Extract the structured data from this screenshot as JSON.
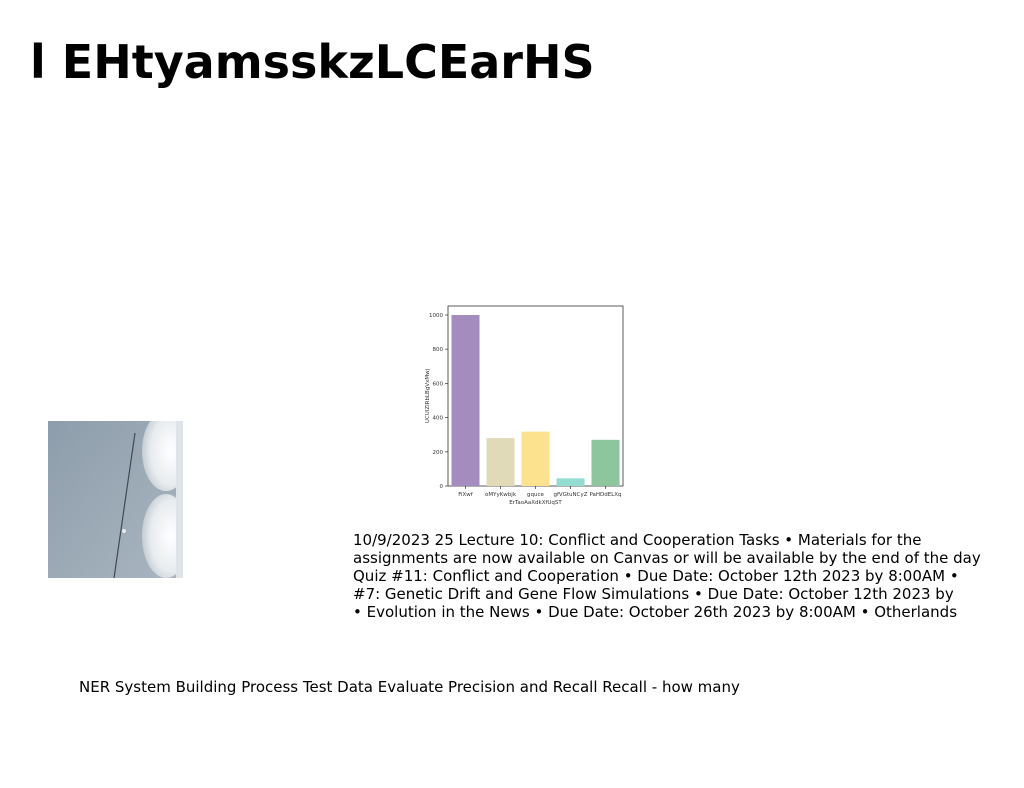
{
  "title": "l EHtyamsskzLCEarHS",
  "chart_data": {
    "type": "bar",
    "categories": [
      "FiXwf",
      "oMYyKwbjk",
      "gquce",
      "gfVGtuNCyZ",
      "PaHDdELXq"
    ],
    "values": [
      1000,
      280,
      318,
      45,
      270
    ],
    "colors": [
      "#a48cbf",
      "#e0dab8",
      "#fce18e",
      "#93dcd0",
      "#8dc59c"
    ],
    "xlabel": "ErTaoAaXdkXfUqST",
    "ylabel": "UCUIZlRbLBgVxMwj",
    "ylim": [
      0,
      1000
    ],
    "yticks": [
      0,
      200,
      400,
      600,
      800,
      1000
    ],
    "grid": false
  },
  "paragraph_lines": [
    "10/9/2023 25 Lecture 10: Conflict and Cooperation Tasks • Materials for the",
    "assignments are now available on Canvas or will be available by the end of the day",
    "Quiz #11: Conflict and Cooperation • Due Date: October 12th 2023 by 8:00AM •",
    "#7: Genetic Drift and Gene Flow Simulations • Due Date: October 12th 2023 by",
    "• Evolution in the News • Due Date: October 26th 2023 by 8:00AM • Otherlands"
  ],
  "caption": "NER System Building Process Test Data Evaluate Precision and Recall Recall - how many"
}
